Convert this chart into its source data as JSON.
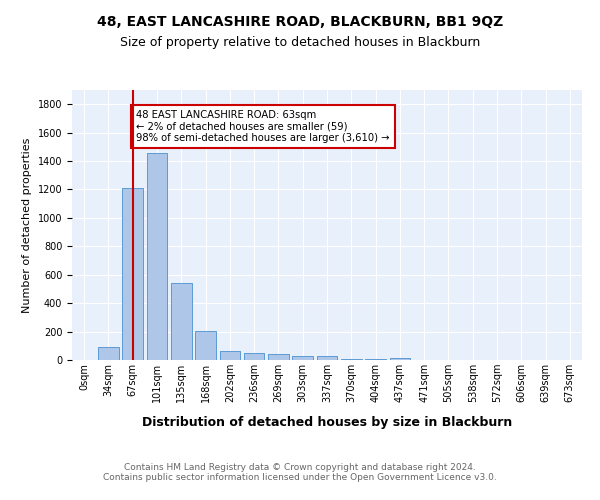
{
  "title": "48, EAST LANCASHIRE ROAD, BLACKBURN, BB1 9QZ",
  "subtitle": "Size of property relative to detached houses in Blackburn",
  "xlabel": "Distribution of detached houses by size in Blackburn",
  "ylabel": "Number of detached properties",
  "bar_labels": [
    "0sqm",
    "34sqm",
    "67sqm",
    "101sqm",
    "135sqm",
    "168sqm",
    "202sqm",
    "236sqm",
    "269sqm",
    "303sqm",
    "337sqm",
    "370sqm",
    "404sqm",
    "437sqm",
    "471sqm",
    "505sqm",
    "538sqm",
    "572sqm",
    "606sqm",
    "639sqm",
    "673sqm"
  ],
  "bar_values": [
    0,
    90,
    1210,
    1460,
    540,
    205,
    65,
    50,
    40,
    27,
    25,
    10,
    10,
    12,
    0,
    0,
    0,
    0,
    0,
    0,
    0
  ],
  "bar_color": "#aec6e8",
  "bar_edge_color": "#5b9bd5",
  "vline_x": 2.0,
  "vline_color": "#cc0000",
  "annotation_text": "48 EAST LANCASHIRE ROAD: 63sqm\n← 2% of detached houses are smaller (59)\n98% of semi-detached houses are larger (3,610) →",
  "annotation_box_color": "#ffffff",
  "annotation_box_edge": "#cc0000",
  "ylim": [
    0,
    1900
  ],
  "background_color": "#e8f0fb",
  "grid_color": "#ffffff",
  "footer": "Contains HM Land Registry data © Crown copyright and database right 2024.\nContains public sector information licensed under the Open Government Licence v3.0.",
  "title_fontsize": 10,
  "subtitle_fontsize": 9,
  "xlabel_fontsize": 9,
  "ylabel_fontsize": 8,
  "tick_fontsize": 7,
  "footer_fontsize": 6.5
}
